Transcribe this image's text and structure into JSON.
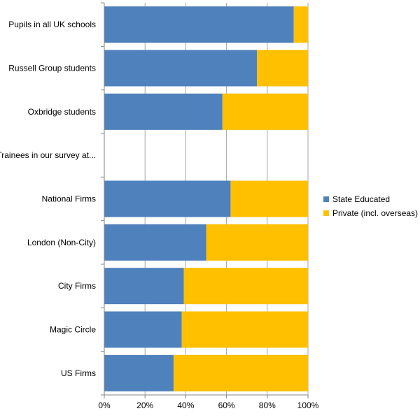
{
  "chart_data": {
    "type": "bar",
    "orientation": "horizontal",
    "stacked": "percent",
    "categories": [
      "Pupils in all UK schools",
      "Russell Group students",
      "Oxbridge students",
      "Trainees in our survey at...",
      "National Firms",
      "London (Non-City)",
      "City Firms",
      "Magic Circle",
      "US Firms"
    ],
    "series": [
      {
        "name": "State Educated",
        "color": "#4F81BD",
        "values": [
          93,
          75,
          58,
          null,
          62,
          50,
          39,
          38,
          34
        ]
      },
      {
        "name": "Private (incl. overseas)",
        "color": "#FFC000",
        "values": [
          7,
          25,
          42,
          null,
          38,
          50,
          61,
          62,
          66
        ]
      }
    ],
    "xlim": [
      0,
      100
    ],
    "x_ticks": [
      "0%",
      "20%",
      "40%",
      "60%",
      "80%",
      "100%"
    ],
    "grid": "vertical",
    "legend_position": "right"
  }
}
